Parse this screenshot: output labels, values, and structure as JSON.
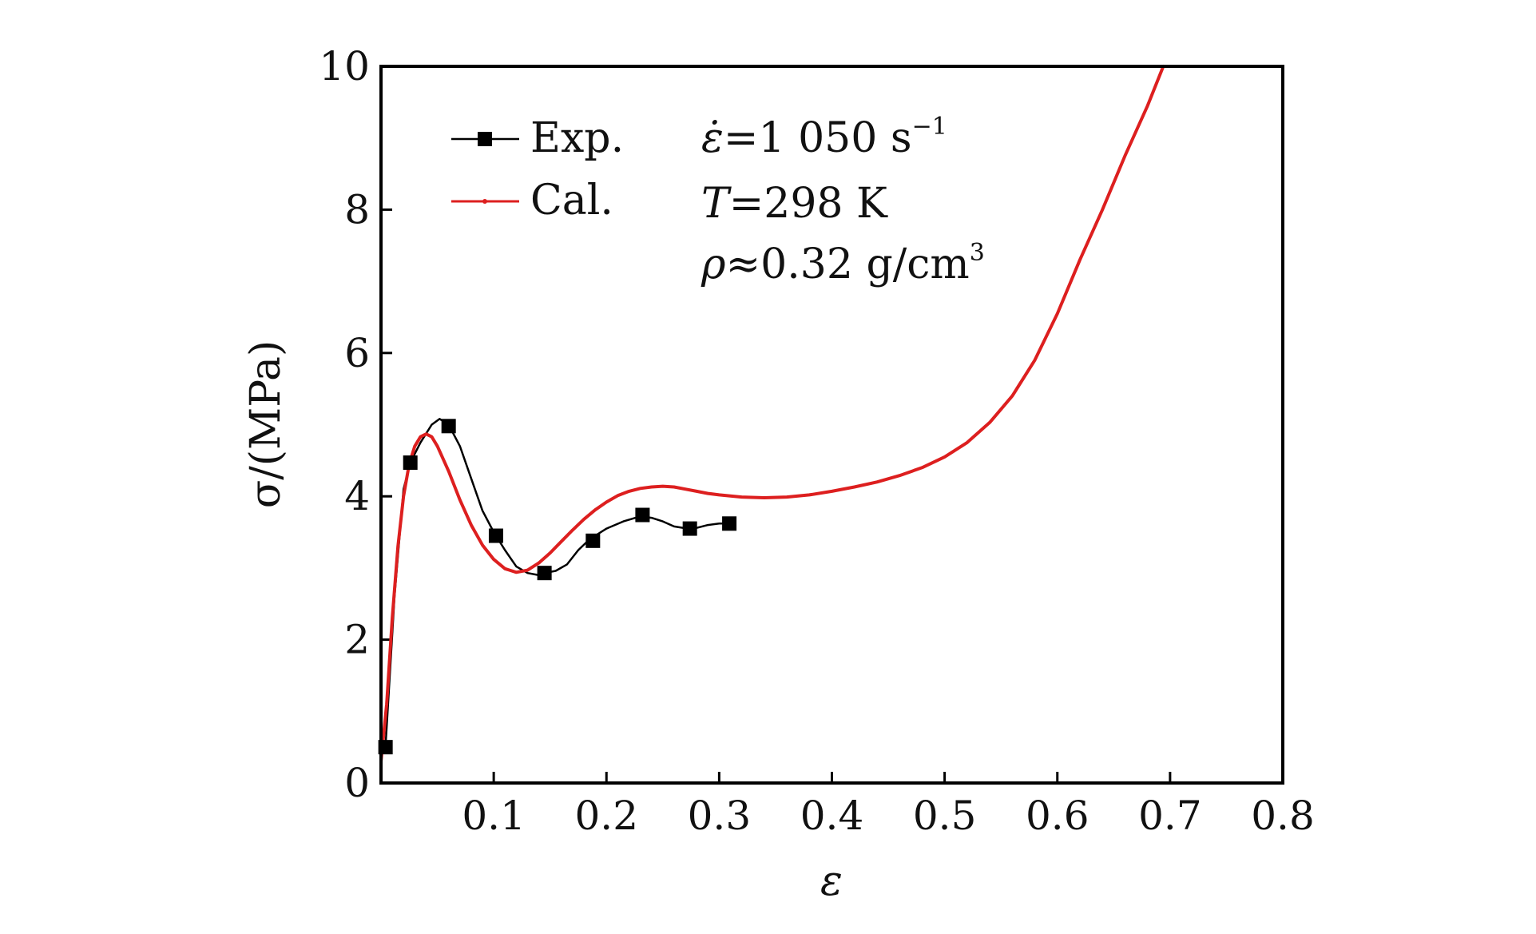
{
  "chart_data": {
    "type": "line",
    "title": "",
    "xlabel": "ε",
    "ylabel": "σ/(MPa)",
    "xlim": [
      0,
      0.8
    ],
    "ylim": [
      0,
      10
    ],
    "x_ticks": [
      0.1,
      0.2,
      0.3,
      0.4,
      0.5,
      0.6,
      0.7,
      0.8
    ],
    "x_tick_labels": [
      "0.1",
      "0.2",
      "0.3",
      "0.4",
      "0.5",
      "0.6",
      "0.7",
      "0.8"
    ],
    "y_ticks": [
      0,
      2,
      4,
      6,
      8,
      10
    ],
    "y_tick_labels": [
      "0",
      "2",
      "4",
      "6",
      "8",
      "10"
    ],
    "legend_position": "top-left",
    "series": [
      {
        "name": "Exp.",
        "color": "#000000",
        "marker": "square",
        "curve": [
          [
            0.004,
            0.5
          ],
          [
            0.012,
            2.6
          ],
          [
            0.02,
            4.1
          ],
          [
            0.026,
            4.47
          ],
          [
            0.035,
            4.75
          ],
          [
            0.045,
            5.0
          ],
          [
            0.052,
            5.08
          ],
          [
            0.06,
            5.0
          ],
          [
            0.07,
            4.7
          ],
          [
            0.08,
            4.25
          ],
          [
            0.09,
            3.8
          ],
          [
            0.1,
            3.5
          ],
          [
            0.11,
            3.25
          ],
          [
            0.12,
            3.02
          ],
          [
            0.13,
            2.93
          ],
          [
            0.14,
            2.9
          ],
          [
            0.145,
            2.93
          ],
          [
            0.155,
            2.96
          ],
          [
            0.165,
            3.05
          ],
          [
            0.175,
            3.25
          ],
          [
            0.185,
            3.4
          ],
          [
            0.2,
            3.55
          ],
          [
            0.215,
            3.65
          ],
          [
            0.23,
            3.72
          ],
          [
            0.24,
            3.7
          ],
          [
            0.25,
            3.65
          ],
          [
            0.26,
            3.58
          ],
          [
            0.272,
            3.55
          ],
          [
            0.28,
            3.56
          ],
          [
            0.29,
            3.6
          ],
          [
            0.3,
            3.62
          ],
          [
            0.31,
            3.62
          ]
        ],
        "points": [
          [
            0.004,
            0.5
          ],
          [
            0.026,
            4.47
          ],
          [
            0.06,
            4.98
          ],
          [
            0.102,
            3.45
          ],
          [
            0.145,
            2.93
          ],
          [
            0.188,
            3.38
          ],
          [
            0.232,
            3.74
          ],
          [
            0.274,
            3.55
          ],
          [
            0.309,
            3.62
          ]
        ]
      },
      {
        "name": "Cal.",
        "color": "#dd1f1f",
        "marker": "none",
        "curve": [
          [
            0.0,
            0.3
          ],
          [
            0.005,
            1.1
          ],
          [
            0.01,
            2.3
          ],
          [
            0.015,
            3.3
          ],
          [
            0.02,
            4.0
          ],
          [
            0.025,
            4.45
          ],
          [
            0.03,
            4.7
          ],
          [
            0.035,
            4.83
          ],
          [
            0.04,
            4.87
          ],
          [
            0.045,
            4.83
          ],
          [
            0.05,
            4.7
          ],
          [
            0.06,
            4.35
          ],
          [
            0.07,
            3.95
          ],
          [
            0.08,
            3.6
          ],
          [
            0.09,
            3.32
          ],
          [
            0.1,
            3.12
          ],
          [
            0.11,
            2.99
          ],
          [
            0.12,
            2.94
          ],
          [
            0.13,
            2.97
          ],
          [
            0.14,
            3.07
          ],
          [
            0.15,
            3.21
          ],
          [
            0.16,
            3.37
          ],
          [
            0.17,
            3.53
          ],
          [
            0.18,
            3.68
          ],
          [
            0.19,
            3.81
          ],
          [
            0.2,
            3.92
          ],
          [
            0.21,
            4.01
          ],
          [
            0.22,
            4.07
          ],
          [
            0.23,
            4.11
          ],
          [
            0.24,
            4.13
          ],
          [
            0.25,
            4.14
          ],
          [
            0.26,
            4.13
          ],
          [
            0.27,
            4.1
          ],
          [
            0.28,
            4.07
          ],
          [
            0.29,
            4.04
          ],
          [
            0.3,
            4.02
          ],
          [
            0.32,
            3.99
          ],
          [
            0.34,
            3.98
          ],
          [
            0.36,
            3.99
          ],
          [
            0.38,
            4.02
          ],
          [
            0.4,
            4.07
          ],
          [
            0.42,
            4.13
          ],
          [
            0.44,
            4.2
          ],
          [
            0.46,
            4.29
          ],
          [
            0.48,
            4.4
          ],
          [
            0.5,
            4.55
          ],
          [
            0.52,
            4.75
          ],
          [
            0.54,
            5.03
          ],
          [
            0.56,
            5.4
          ],
          [
            0.58,
            5.9
          ],
          [
            0.6,
            6.55
          ],
          [
            0.62,
            7.3
          ],
          [
            0.64,
            8.0
          ],
          [
            0.66,
            8.75
          ],
          [
            0.68,
            9.45
          ],
          [
            0.694,
            10.0
          ]
        ]
      }
    ],
    "annotations": [
      {
        "id": "rate",
        "symbol": "ε̇",
        "text": "=1 050 s",
        "sup": "−1"
      },
      {
        "id": "temp",
        "symbol": "T",
        "text": "=298 K"
      },
      {
        "id": "density",
        "symbol": "ρ",
        "text": "≈0.32 g/cm",
        "sup": "3"
      }
    ]
  }
}
